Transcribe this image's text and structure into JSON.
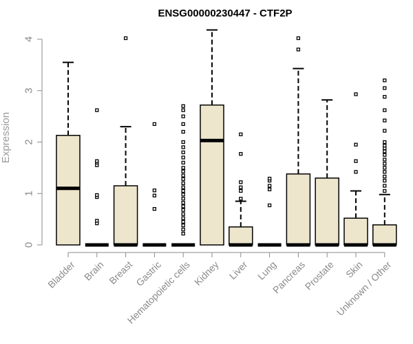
{
  "chart_data": {
    "type": "boxplot",
    "title": "ENSG00000230447 - CTF2P",
    "ylabel": "Expression",
    "xlabel": "",
    "ylim": [
      0,
      4.2
    ],
    "yticks": [
      0,
      1,
      2,
      3,
      4
    ],
    "grid": false,
    "colors": {
      "box_fill": "#ede6cd",
      "stroke": "#000000",
      "axis": "#8a8a8a",
      "text": "#8a8a8a"
    },
    "categories": [
      "Bladder",
      "Brain",
      "Breast",
      "Gastric",
      "Hematopoietic cells",
      "Kidney",
      "Liver",
      "Lung",
      "Pancreas",
      "Prostate",
      "Skin",
      "Unknown / Other"
    ],
    "boxes": [
      {
        "category": "Bladder",
        "min": 0,
        "q1": 0,
        "median": 1.1,
        "q3": 2.13,
        "max": 3.55,
        "outliers": []
      },
      {
        "category": "Brain",
        "min": 0,
        "q1": 0,
        "median": 0,
        "q3": 0,
        "max": 0,
        "outliers": [
          0.42,
          0.47,
          0.93,
          0.97,
          1.55,
          1.6,
          1.63,
          2.62
        ]
      },
      {
        "category": "Breast",
        "min": 0,
        "q1": 0,
        "median": 0,
        "q3": 1.15,
        "max": 2.3,
        "outliers": [
          4.02
        ]
      },
      {
        "category": "Gastric",
        "min": 0,
        "q1": 0,
        "median": 0,
        "q3": 0,
        "max": 0,
        "outliers": [
          0.7,
          0.96,
          1.06,
          2.35
        ]
      },
      {
        "category": "Hematopoietic cells",
        "min": 0,
        "q1": 0,
        "median": 0,
        "q3": 0,
        "max": 0,
        "outliers": [
          0.22,
          0.3,
          0.38,
          0.45,
          0.52,
          0.6,
          0.68,
          0.75,
          0.82,
          0.9,
          0.98,
          1.05,
          1.12,
          1.2,
          1.28,
          1.35,
          1.43,
          1.5,
          1.6,
          1.7,
          1.8,
          1.9,
          2.0,
          2.2,
          2.35,
          2.5,
          2.62,
          2.7
        ]
      },
      {
        "category": "Kidney",
        "min": 0,
        "q1": 0,
        "median": 2.03,
        "q3": 2.72,
        "max": 4.18,
        "outliers": []
      },
      {
        "category": "Liver",
        "min": 0,
        "q1": 0,
        "median": 0,
        "q3": 0.35,
        "max": 0.85,
        "outliers": [
          0.9,
          1.05,
          1.12,
          1.22,
          1.77,
          2.15
        ]
      },
      {
        "category": "Lung",
        "min": 0,
        "q1": 0,
        "median": 0,
        "q3": 0,
        "max": 0,
        "outliers": [
          0.77,
          1.08,
          1.15,
          1.25,
          1.29
        ]
      },
      {
        "category": "Pancreas",
        "min": 0,
        "q1": 0,
        "median": 0,
        "q3": 1.38,
        "max": 3.43,
        "outliers": [
          3.8,
          4.02
        ]
      },
      {
        "category": "Prostate",
        "min": 0,
        "q1": 0,
        "median": 0,
        "q3": 1.3,
        "max": 2.82,
        "outliers": []
      },
      {
        "category": "Skin",
        "min": 0,
        "q1": 0,
        "median": 0,
        "q3": 0.52,
        "max": 1.05,
        "outliers": [
          1.42,
          1.63,
          1.95,
          2.93
        ]
      },
      {
        "category": "Unknown / Other",
        "min": 0,
        "q1": 0,
        "median": 0,
        "q3": 0.39,
        "max": 0.98,
        "outliers": [
          1.05,
          1.15,
          1.25,
          1.33,
          1.42,
          1.5,
          1.58,
          1.66,
          1.75,
          1.82,
          1.88,
          1.93,
          2.0,
          2.22,
          2.42,
          2.62,
          2.88,
          3.05,
          3.2
        ]
      }
    ]
  }
}
